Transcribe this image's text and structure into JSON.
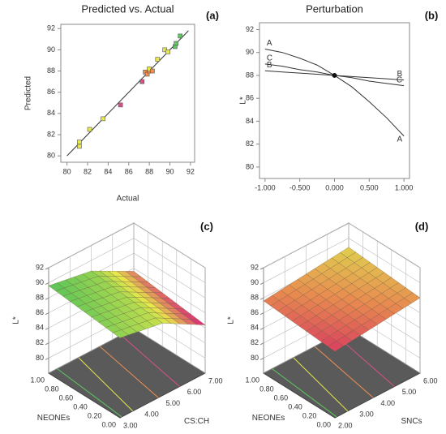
{
  "chart_data": [
    {
      "type": "scatter",
      "title": "Predicted vs. Actual",
      "panel_label": "(a)",
      "x_label": "Actual",
      "y_label": "Predicted",
      "xlim": [
        79.4,
        92.4
      ],
      "xticks": [
        80,
        82,
        84,
        86,
        88,
        90,
        92
      ],
      "ylim": [
        79.4,
        92.4
      ],
      "yticks": [
        80,
        82,
        84,
        86,
        88,
        90,
        92
      ],
      "x": [
        81.2,
        81.2,
        82.2,
        83.5,
        85.2,
        87.3,
        87.6,
        87.8,
        88.0,
        88.0,
        88.3,
        88.8,
        89.5,
        89.8,
        90.5,
        90.6,
        91.0
      ],
      "values": [
        80.9,
        81.3,
        82.5,
        83.5,
        84.8,
        87.0,
        87.9,
        87.7,
        88.0,
        88.2,
        88.0,
        89.1,
        90.0,
        89.8,
        90.3,
        90.6,
        91.3
      ],
      "colors": [
        "#e8e84a",
        "#e8e84a",
        "#e8e84a",
        "#e8e84a",
        "#d8508a",
        "#d8508a",
        "#f09050",
        "#f09050",
        "#f09050",
        "#e8e84a",
        "#f09050",
        "#e8e84a",
        "#e8e84a",
        "#e8e84a",
        "#60c860",
        "#60c860",
        "#60c860"
      ]
    },
    {
      "type": "line",
      "title": "Perturbation",
      "panel_label": "(b)",
      "y_label": "L*",
      "xlim": [
        -1.08,
        1.08
      ],
      "xticks": [
        {
          "value": -1,
          "label": "-1.000"
        },
        {
          "value": -0.5,
          "label": "-0.500"
        },
        {
          "value": 0,
          "label": "0.000"
        },
        {
          "value": 0.5,
          "label": "0.500"
        },
        {
          "value": 1,
          "label": "1.000"
        }
      ],
      "ylim": [
        79,
        92.6
      ],
      "yticks": [
        80,
        82,
        84,
        86,
        88,
        90,
        92
      ],
      "x": [
        -1,
        -0.75,
        -0.5,
        -0.25,
        0,
        0.25,
        0.5,
        0.75,
        1
      ],
      "series": [
        {
          "name": "A",
          "color": "#333333",
          "values": [
            90.3,
            90.0,
            89.5,
            88.9,
            88.0,
            87.0,
            85.7,
            84.3,
            82.7
          ]
        },
        {
          "name": "B",
          "color": "#333333",
          "values": [
            88.4,
            88.3,
            88.2,
            88.1,
            88.0,
            87.9,
            87.8,
            87.7,
            87.6
          ]
        },
        {
          "name": "C",
          "color": "#333333",
          "values": [
            89.0,
            88.8,
            88.5,
            88.3,
            88.0,
            87.8,
            87.5,
            87.3,
            87.1
          ]
        }
      ]
    },
    {
      "type": "surface",
      "panel_label": "(c)",
      "z_label": "L*",
      "x_label": "CS:CH",
      "y_label": "NEONEs",
      "xlim": [
        3,
        7
      ],
      "xticks": [
        {
          "value": 3,
          "label": "3.00"
        },
        {
          "value": 4,
          "label": "4.00"
        },
        {
          "value": 5,
          "label": "5.00"
        },
        {
          "value": 6,
          "label": "6.00"
        },
        {
          "value": 7,
          "label": "7.00"
        }
      ],
      "ylim": [
        0,
        1
      ],
      "yticks": [
        {
          "value": 0,
          "label": "0.00"
        },
        {
          "value": 0.2,
          "label": "0.20"
        },
        {
          "value": 0.4,
          "label": "0.40"
        },
        {
          "value": 0.6,
          "label": "0.60"
        },
        {
          "value": 0.8,
          "label": "0.80"
        },
        {
          "value": 1,
          "label": "1.00"
        }
      ],
      "zlim": [
        78,
        92
      ],
      "zticks": [
        80,
        82,
        84,
        86,
        88,
        90,
        92
      ],
      "x": [
        3,
        5,
        7
      ],
      "y": [
        0,
        0.5,
        1
      ],
      "z": [
        [
          88.6,
          87.6,
          84.4
        ],
        [
          89.1,
          88.1,
          85.0
        ],
        [
          89.6,
          88.6,
          85.6
        ]
      ],
      "colorscale": [
        "#d81b7a",
        "#e8e84a",
        "#58c458"
      ]
    },
    {
      "type": "surface",
      "panel_label": "(d)",
      "z_label": "L*",
      "x_label": "SNCs",
      "y_label": "NEONEs",
      "xlim": [
        2,
        6
      ],
      "xticks": [
        {
          "value": 2,
          "label": "2.00"
        },
        {
          "value": 3,
          "label": "3.00"
        },
        {
          "value": 4,
          "label": "4.00"
        },
        {
          "value": 5,
          "label": "5.00"
        },
        {
          "value": 6,
          "label": "6.00"
        }
      ],
      "ylim": [
        0,
        1
      ],
      "yticks": [
        {
          "value": 0,
          "label": "0.00"
        },
        {
          "value": 0.2,
          "label": "0.20"
        },
        {
          "value": 0.4,
          "label": "0.40"
        },
        {
          "value": 0.6,
          "label": "0.60"
        },
        {
          "value": 0.8,
          "label": "0.80"
        },
        {
          "value": 1,
          "label": "1.00"
        }
      ],
      "zlim": [
        78,
        92
      ],
      "zticks": [
        80,
        82,
        84,
        86,
        88,
        90,
        92
      ],
      "x": [
        2,
        4,
        6
      ],
      "y": [
        0,
        0.5,
        1
      ],
      "z": [
        [
          86.8,
          87.4,
          88.0
        ],
        [
          87.2,
          87.8,
          88.4
        ],
        [
          87.6,
          88.2,
          88.8
        ]
      ],
      "colorscale": [
        "#d84060",
        "#e88a50",
        "#e0d050"
      ]
    }
  ]
}
